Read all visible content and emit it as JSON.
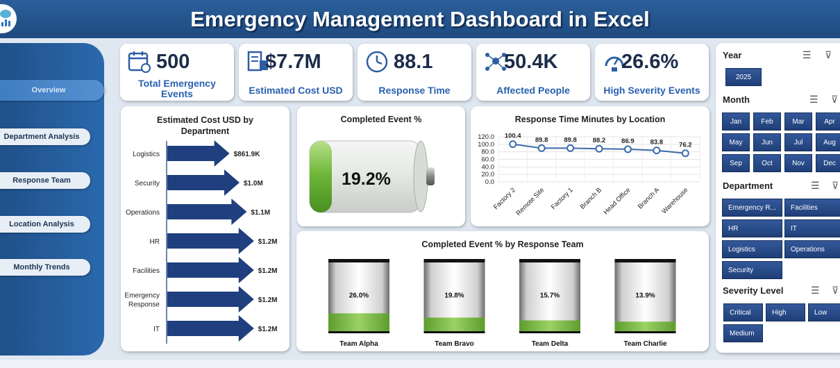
{
  "header": {
    "title": "Emergency Management Dashboard in Excel"
  },
  "nav": [
    {
      "label": "Overview",
      "active": true
    },
    {
      "label": "Department Analysis",
      "active": false
    },
    {
      "label": "Response Team",
      "active": false
    },
    {
      "label": "Location Analysis",
      "active": false
    },
    {
      "label": "Monthly Trends",
      "active": false
    }
  ],
  "kpis": [
    {
      "value": "500",
      "label": "Total Emergency Events",
      "icon": "calendar-icon"
    },
    {
      "value": "$7.7M",
      "label": "Estimated Cost USD",
      "icon": "receipt-icon"
    },
    {
      "value": "88.1",
      "label": "Response Time",
      "icon": "clock-icon"
    },
    {
      "value": "50.4K",
      "label": "Affected People",
      "icon": "people-network-icon"
    },
    {
      "value": "26.6%",
      "label": "High Severity Events",
      "icon": "gauge-icon"
    }
  ],
  "cost_chart": {
    "title": "Estimated Cost USD by Department",
    "categories": [
      "Logistics",
      "Security",
      "Operations",
      "HR",
      "Facilities",
      "Emergency Response",
      "IT"
    ],
    "values": [
      861.9,
      1000,
      1100,
      1200,
      1200,
      1200,
      1200
    ],
    "labels": [
      "$861.9K",
      "$1.0M",
      "$1.1M",
      "$1.2M",
      "$1.2M",
      "$1.2M",
      "$1.2M"
    ]
  },
  "completed": {
    "title": "Completed Event %",
    "value": "19.2%",
    "fraction": 0.192
  },
  "response_chart": {
    "title": "Response Time Minutes by Location",
    "categories": [
      "Factory 2",
      "Remote Site",
      "Factory 1",
      "Branch B",
      "Head Office",
      "Branch A",
      "Warehouse"
    ],
    "values": [
      100.4,
      89.8,
      89.8,
      88.2,
      86.9,
      83.8,
      76.2
    ],
    "labels": [
      "100.4",
      "89.8",
      "89.8",
      "88.2",
      "86.9",
      "83.8",
      "76.2"
    ],
    "yticks": [
      "120.0",
      "100.0",
      "80.0",
      "60.0",
      "40.0",
      "20.0",
      "0.0"
    ],
    "ylim": [
      0,
      120
    ]
  },
  "team_chart": {
    "title": "Completed Event % by Response Team",
    "teams": [
      {
        "name": "Team Alpha",
        "value": 0.26,
        "label": "26.0%"
      },
      {
        "name": "Team Bravo",
        "value": 0.198,
        "label": "19.8%"
      },
      {
        "name": "Team Delta",
        "value": 0.157,
        "label": "15.7%"
      },
      {
        "name": "Team Charlie",
        "value": 0.139,
        "label": "13.9%"
      }
    ]
  },
  "slicers": {
    "year": {
      "title": "Year",
      "items": [
        "2025"
      ]
    },
    "month": {
      "title": "Month",
      "items": [
        "Jan",
        "Feb",
        "Mar",
        "Apr",
        "May",
        "Jun",
        "Jul",
        "Aug",
        "Sep",
        "Oct",
        "Nov",
        "Dec"
      ]
    },
    "department": {
      "title": "Department",
      "items": [
        "Emergency R...",
        "Facilities",
        "HR",
        "IT",
        "Logistics",
        "Operations",
        "Security"
      ]
    },
    "severity": {
      "title": "Severity Level",
      "items": [
        "Critical",
        "High",
        "Low",
        "Medium"
      ]
    }
  }
}
